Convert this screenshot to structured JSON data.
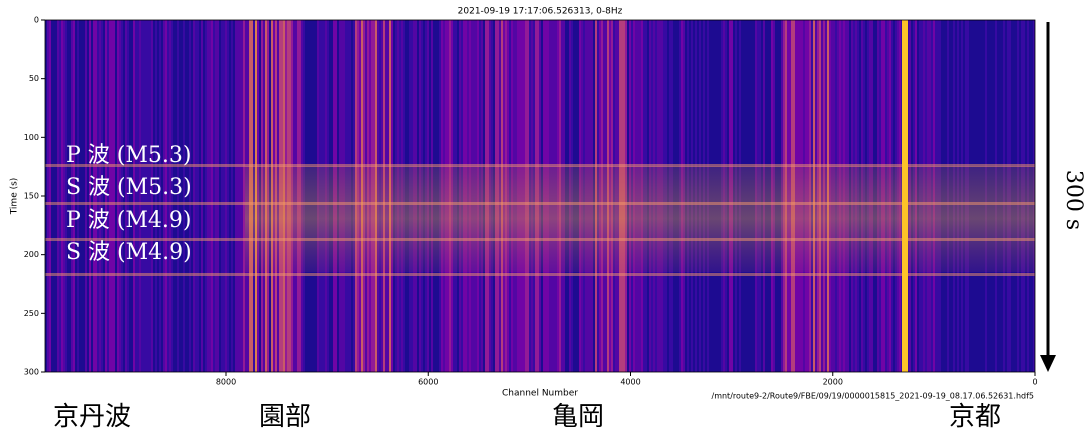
{
  "chart_data": {
    "type": "heatmap",
    "title": "2021-09-19 17:17:06.526313,    0-8Hz",
    "xlabel": "Channel Number",
    "ylabel": "Time (s)",
    "xlim": [
      9790,
      0
    ],
    "xticks": [
      8000,
      6000,
      4000,
      2000,
      0
    ],
    "ylim": [
      0,
      300
    ],
    "yticks": [
      0,
      50,
      100,
      150,
      200,
      250,
      300
    ],
    "annotations": [
      "P 波 (M5.3)",
      "S 波 (M5.3)",
      "P 波 (M4.9)",
      "S 波 (M4.9)"
    ],
    "source": "/mnt/route9-2/Route9/FBE/09/19/0000015815_2021-09-19_08.17.06.52631.hdf5",
    "duration_label": "300 s",
    "regions": [
      "京丹波",
      "園部",
      "亀岡",
      "京都"
    ]
  }
}
